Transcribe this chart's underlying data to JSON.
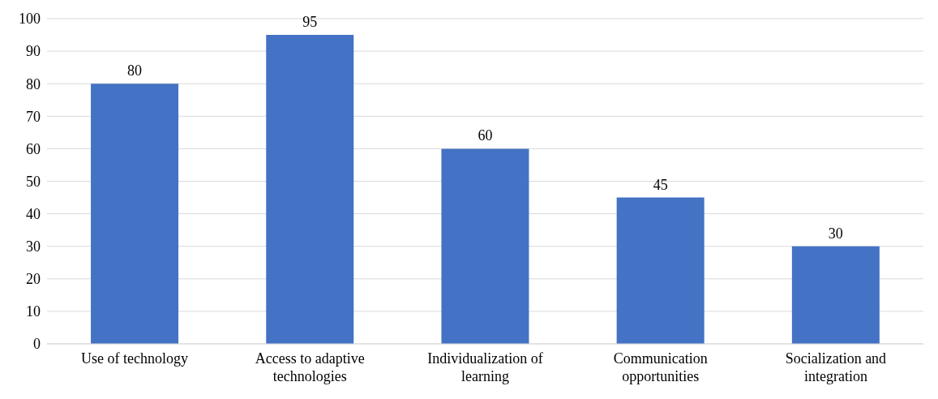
{
  "chart_data": {
    "type": "bar",
    "categories": [
      "Use of technology",
      "Access to adaptive technologies",
      "Individualization of learning",
      "Communication opportunities",
      "Socialization and integration"
    ],
    "values": [
      80,
      95,
      60,
      45,
      30
    ],
    "color": "#4472c4",
    "ylim": [
      0,
      100
    ],
    "yticks": [
      0,
      10,
      20,
      30,
      40,
      50,
      60,
      70,
      80,
      90,
      100
    ],
    "grid": "y",
    "data_labels": true,
    "legend": false
  }
}
